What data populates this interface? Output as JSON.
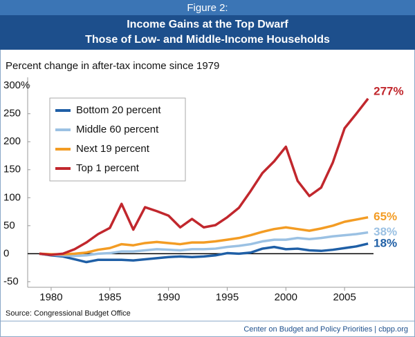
{
  "header": {
    "figure": "Figure 2:",
    "title_lines": [
      "Income Gains at the Top Dwarf",
      "Those of Low- and Middle-Income Households"
    ]
  },
  "chart_data": {
    "type": "line",
    "y_label": "Percent change in after-tax income since 1979",
    "x": [
      1979,
      1980,
      1981,
      1982,
      1983,
      1984,
      1985,
      1986,
      1987,
      1988,
      1989,
      1990,
      1991,
      1992,
      1993,
      1994,
      1995,
      1996,
      1997,
      1998,
      1999,
      2000,
      2001,
      2002,
      2003,
      2004,
      2005,
      2006,
      2007
    ],
    "xlim": [
      1978,
      2011
    ],
    "xticks": [
      1980,
      1985,
      1990,
      1995,
      2000,
      2005
    ],
    "ylim": [
      -60,
      315
    ],
    "yticks": [
      {
        "value": 300,
        "label": "300%"
      },
      250,
      200,
      150,
      100,
      50,
      0,
      -50
    ],
    "legend": "upper left",
    "series": [
      {
        "name": "Bottom 20 percent",
        "color": "#1f5fa6",
        "values": [
          0,
          -3,
          -5,
          -10,
          -15,
          -11,
          -11,
          -11,
          -12,
          -10,
          -8,
          -6,
          -5,
          -6,
          -5,
          -3,
          1,
          0,
          2,
          9,
          12,
          8,
          9,
          6,
          5,
          7,
          10,
          13,
          18
        ],
        "value_labels": [
          null,
          null,
          null,
          null,
          null,
          null,
          null,
          null,
          null,
          null,
          null,
          null,
          null,
          null,
          null,
          null,
          null,
          null,
          null,
          null,
          null,
          null,
          null,
          null,
          null,
          null,
          null,
          null,
          "18%"
        ]
      },
      {
        "name": "Middle 60 percent",
        "color": "#9bc1e3",
        "values": [
          0,
          -2,
          -3,
          -4,
          -3,
          0,
          1,
          4,
          4,
          6,
          8,
          7,
          6,
          8,
          8,
          9,
          12,
          14,
          17,
          22,
          25,
          25,
          28,
          26,
          28,
          31,
          33,
          35,
          38
        ],
        "value_labels": [
          null,
          null,
          null,
          null,
          null,
          null,
          null,
          null,
          null,
          null,
          null,
          null,
          null,
          null,
          null,
          null,
          null,
          null,
          null,
          null,
          null,
          null,
          null,
          null,
          null,
          null,
          null,
          null,
          "38%"
        ]
      },
      {
        "name": "Next 19 percent",
        "color": "#f39c24",
        "values": [
          0,
          -1,
          -1,
          0,
          2,
          7,
          10,
          17,
          15,
          19,
          21,
          19,
          17,
          20,
          20,
          22,
          25,
          28,
          33,
          39,
          44,
          47,
          44,
          41,
          45,
          50,
          57,
          61,
          65
        ],
        "value_labels": [
          null,
          null,
          null,
          null,
          null,
          null,
          null,
          null,
          null,
          null,
          null,
          null,
          null,
          null,
          null,
          null,
          null,
          null,
          null,
          null,
          null,
          null,
          null,
          null,
          null,
          null,
          null,
          null,
          "65%"
        ]
      },
      {
        "name": "Top 1 percent",
        "color": "#c1272d",
        "values": [
          0,
          -2,
          0,
          8,
          20,
          35,
          46,
          89,
          43,
          83,
          76,
          68,
          47,
          62,
          47,
          51,
          65,
          82,
          112,
          144,
          165,
          191,
          130,
          103,
          118,
          163,
          224,
          250,
          277
        ],
        "value_labels": [
          null,
          null,
          null,
          null,
          null,
          null,
          null,
          null,
          null,
          null,
          null,
          null,
          null,
          null,
          null,
          null,
          null,
          null,
          null,
          null,
          null,
          null,
          null,
          null,
          null,
          null,
          null,
          null,
          "277%"
        ]
      }
    ]
  },
  "source": "Source: Congressional Budget Office",
  "footer": "Center on Budget and Policy Priorities | cbpp.org"
}
